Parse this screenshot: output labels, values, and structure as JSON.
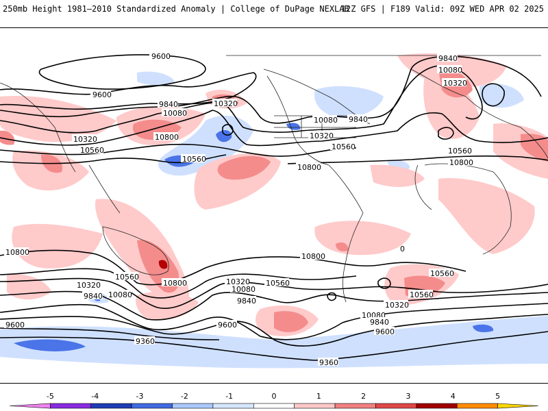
{
  "header": {
    "left": "250mb Height 1981–2010 Standardized Anomaly | College of DuPage NEXLAB",
    "right": "12Z GFS | F189 Valid: 09Z WED APR 02 2025"
  },
  "contour_labels": [
    {
      "id": "c1",
      "text": "9600"
    },
    {
      "id": "c2",
      "text": "9600"
    },
    {
      "id": "c3",
      "text": "9840"
    },
    {
      "id": "c4",
      "text": "10080"
    },
    {
      "id": "c5",
      "text": "10320"
    },
    {
      "id": "c6",
      "text": "10560"
    },
    {
      "id": "c7",
      "text": "10320"
    },
    {
      "id": "c8",
      "text": "10800"
    },
    {
      "id": "c9",
      "text": "10560"
    },
    {
      "id": "c10",
      "text": "10080"
    },
    {
      "id": "c11",
      "text": "9840"
    },
    {
      "id": "c12",
      "text": "10320"
    },
    {
      "id": "c13",
      "text": "10560"
    },
    {
      "id": "c14",
      "text": "10800"
    },
    {
      "id": "c15",
      "text": "9840"
    },
    {
      "id": "c16",
      "text": "10080"
    },
    {
      "id": "c17",
      "text": "10320"
    },
    {
      "id": "c18",
      "text": "10560"
    },
    {
      "id": "c19",
      "text": "10800"
    },
    {
      "id": "c20",
      "text": "10800"
    },
    {
      "id": "c21",
      "text": "10560"
    },
    {
      "id": "c22",
      "text": "10800"
    },
    {
      "id": "c23",
      "text": "10320"
    },
    {
      "id": "c24",
      "text": "10080"
    },
    {
      "id": "c25",
      "text": "9840"
    },
    {
      "id": "c26",
      "text": "10320"
    },
    {
      "id": "c27",
      "text": "10560"
    },
    {
      "id": "c28",
      "text": "10080"
    },
    {
      "id": "c29",
      "text": "9840"
    },
    {
      "id": "c30",
      "text": "9600"
    },
    {
      "id": "c31",
      "text": "9360"
    },
    {
      "id": "c32",
      "text": "9360"
    },
    {
      "id": "c33",
      "text": "10800"
    },
    {
      "id": "c34",
      "text": "10560"
    },
    {
      "id": "c35",
      "text": "10320"
    },
    {
      "id": "c36",
      "text": "10080"
    },
    {
      "id": "c37",
      "text": "9840"
    },
    {
      "id": "c38",
      "text": "9600"
    },
    {
      "id": "c39",
      "text": "9600"
    },
    {
      "id": "c40",
      "text": "0"
    }
  ],
  "colorbar": {
    "ticks": [
      "-5",
      "-4",
      "-3",
      "-2",
      "-1",
      "0",
      "1",
      "2",
      "3",
      "4",
      "5"
    ],
    "colors": [
      "#ee82ee",
      "#8a2be2",
      "#1e3cb4",
      "#4169e1",
      "#aac8ff",
      "#d7e6ff",
      "#ffffff",
      "#ffc8c8",
      "#f08080",
      "#e04848",
      "#a00000",
      "#ff8c00",
      "#ffd700"
    ]
  }
}
